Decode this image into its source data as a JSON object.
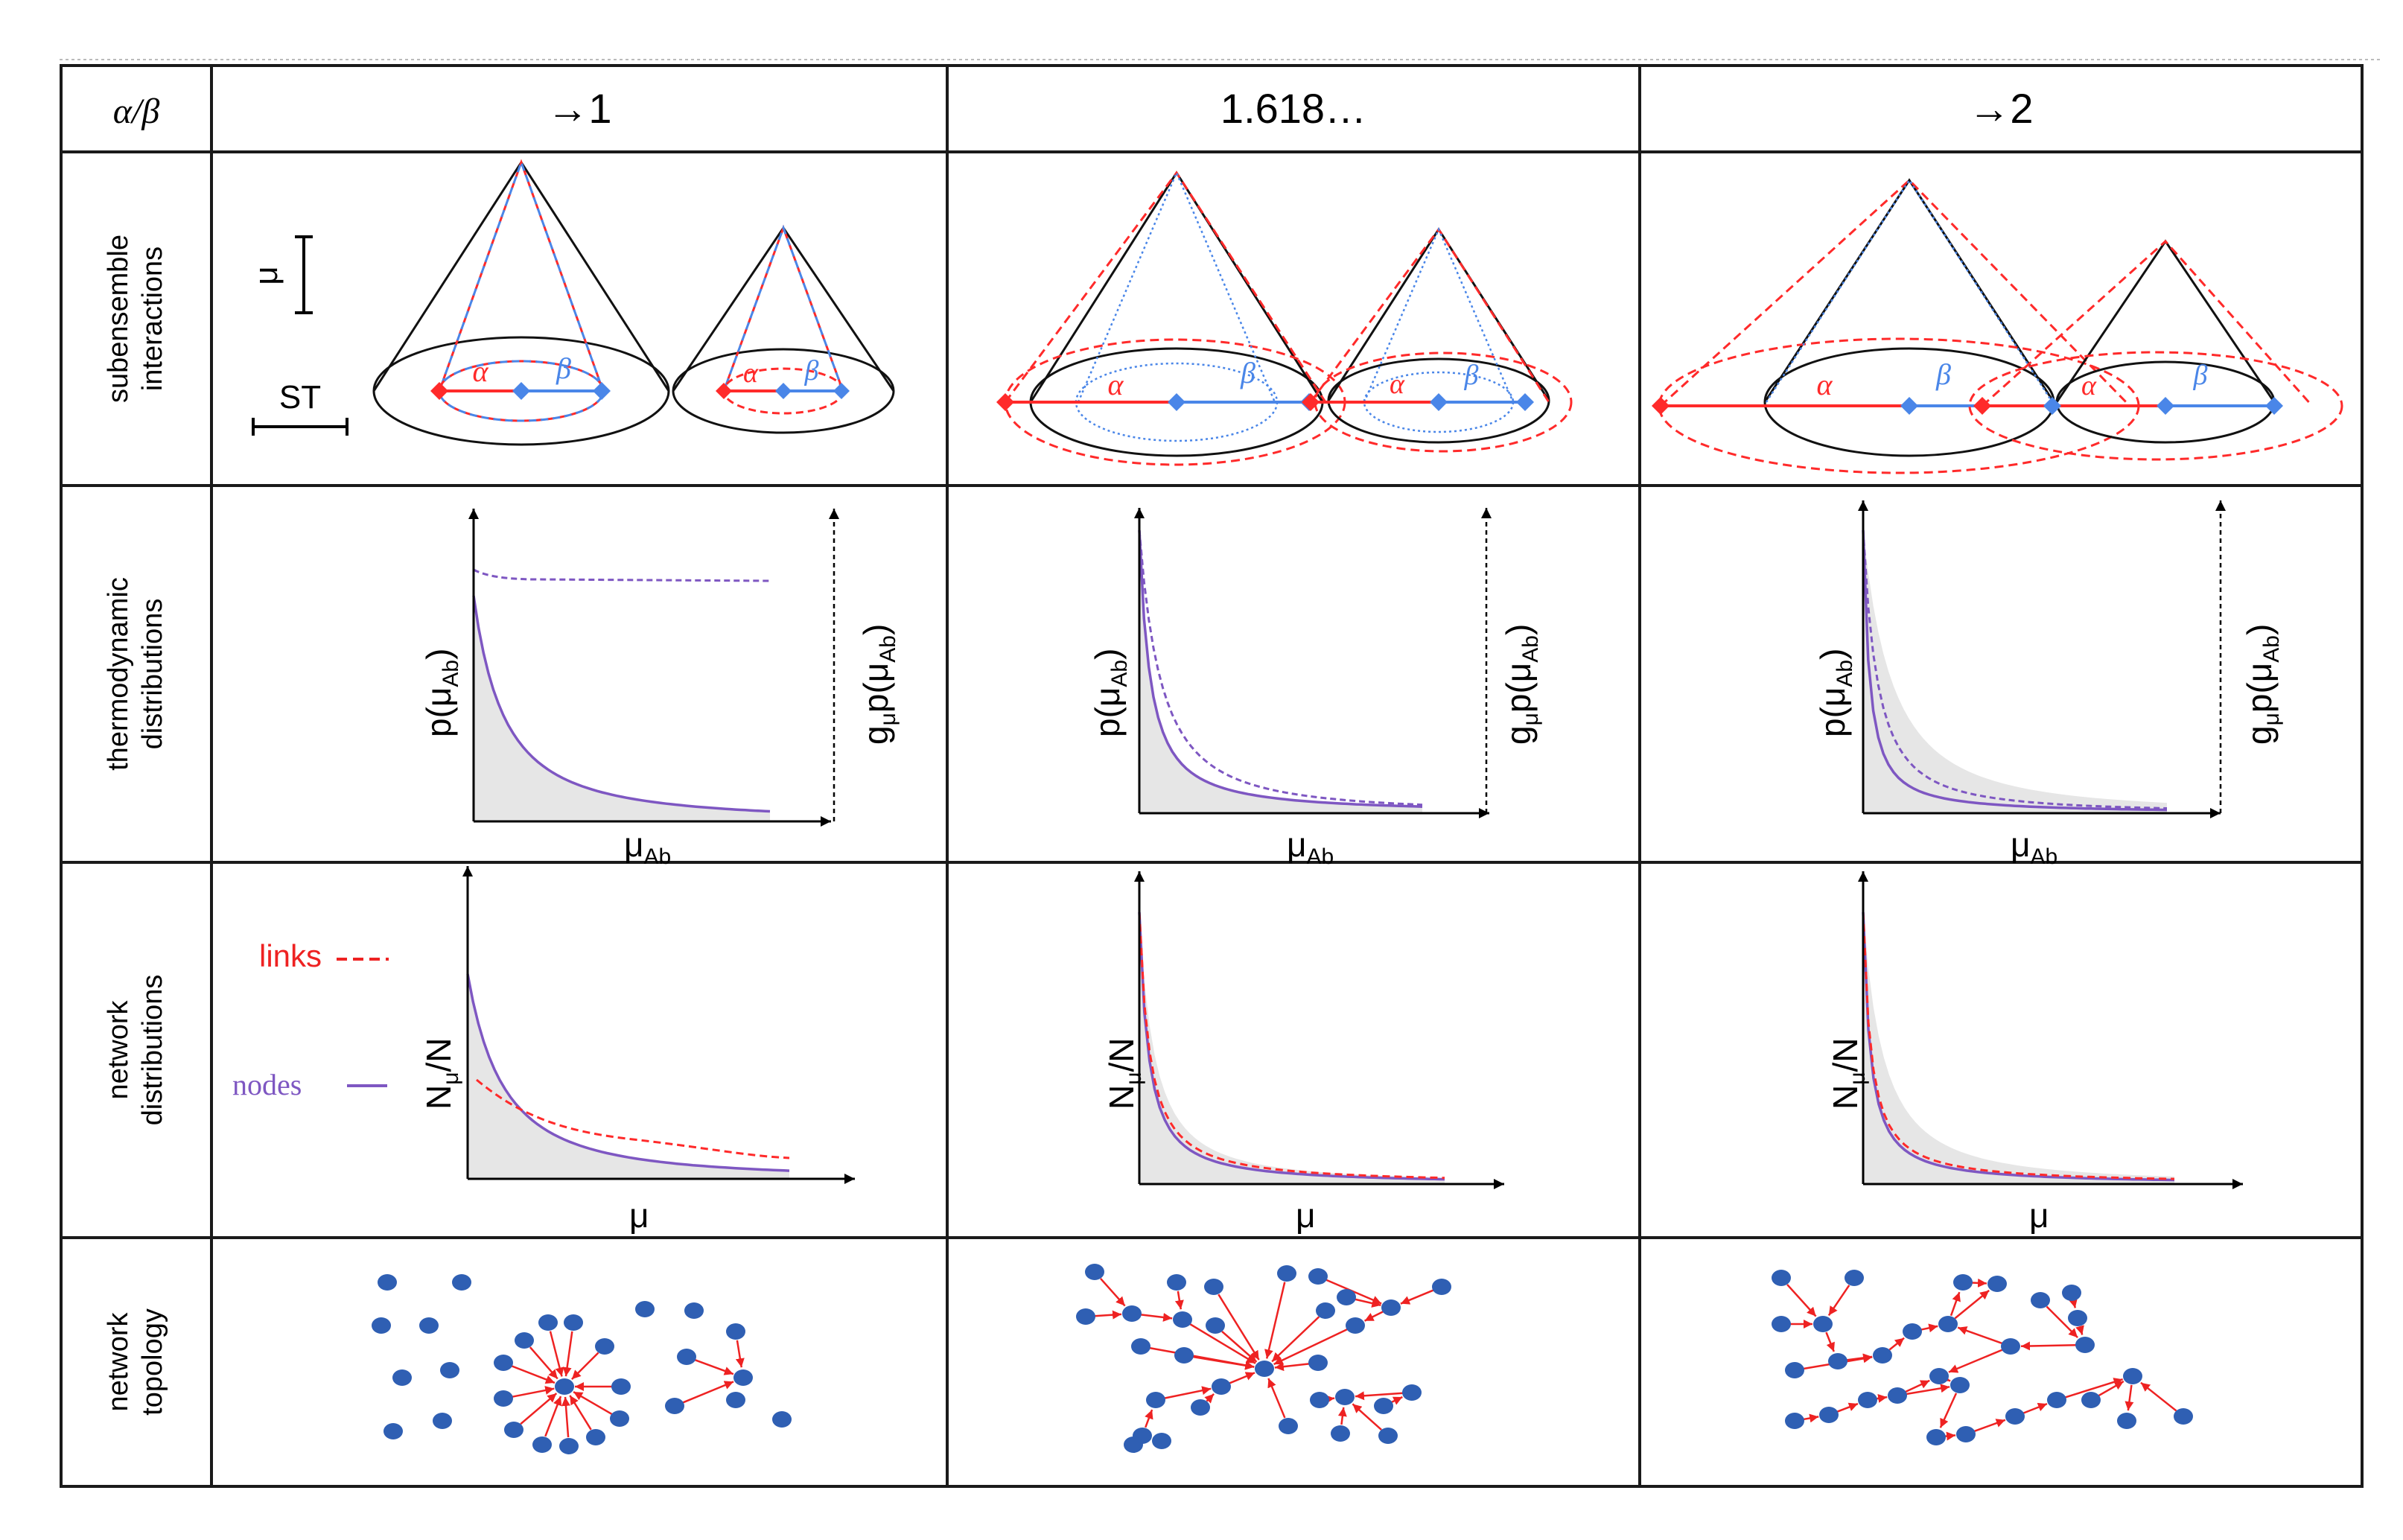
{
  "header": {
    "corner": "α/β",
    "columns": [
      "→1",
      "1.618…",
      "→2"
    ]
  },
  "rows": [
    {
      "line1": "subensemble",
      "line2": "interactions"
    },
    {
      "line1": "thermodynamic",
      "line2": "distributions"
    },
    {
      "line1": "network",
      "line2": "distributions"
    },
    {
      "line1": "network",
      "line2": "topology"
    }
  ],
  "scale": {
    "mu": "μ",
    "st": "ST"
  },
  "cone_labels": {
    "alpha": "α",
    "beta": "β"
  },
  "thermo": {
    "y_left_main": "p(μ",
    "y_left_sub": "Ab",
    "y_left_end": ")",
    "y_right_g": "g",
    "y_right_gsub": "μ",
    "y_right_main": "p(μ",
    "y_right_sub": "Ab",
    "y_right_end": ")",
    "x_main": "μ",
    "x_sub": "Ab"
  },
  "network": {
    "y_main": "N",
    "y_sub": "μ",
    "y_end": "/N",
    "x_label": "μ"
  },
  "legend": {
    "links": "links",
    "nodes": "nodes"
  },
  "colors": {
    "grid": "#1a1a1a",
    "alpha": "#ff2a2a",
    "beta": "#4a86e8",
    "curve": "#7e57c2",
    "fill": "#e6e6e6",
    "node": "#2f5fb3",
    "link": "#ee2222"
  }
}
